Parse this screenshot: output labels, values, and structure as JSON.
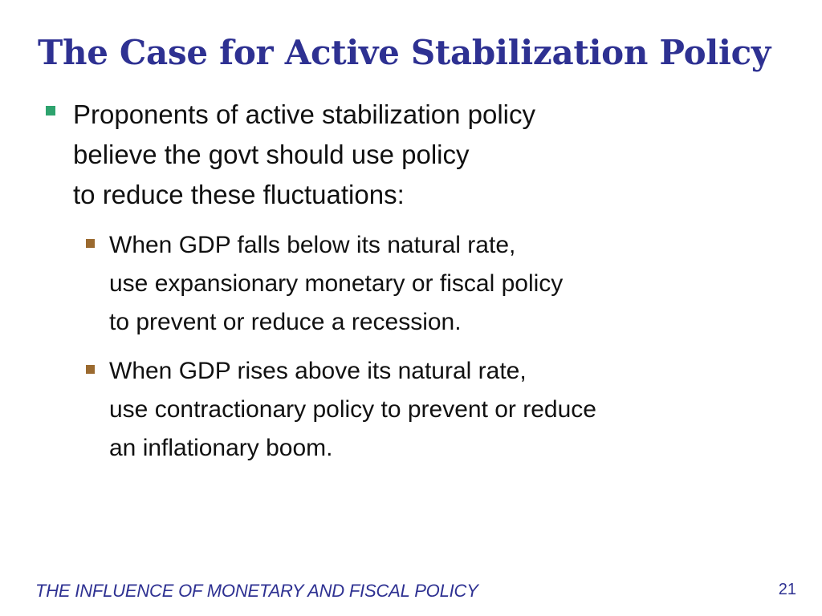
{
  "slide": {
    "title": "The Case for Active Stabilization Policy",
    "bullet_main": {
      "lines": [
        "Proponents of active stabilization policy",
        "believe the govt should use policy",
        "to reduce these fluctuations:"
      ],
      "sub_bullets": [
        {
          "lines": [
            "When GDP falls below its natural rate,",
            "use expansionary monetary or fiscal policy",
            "to prevent or reduce a recession."
          ]
        },
        {
          "lines": [
            "When GDP rises above its natural rate,",
            "use contractionary policy to prevent or reduce",
            "an inflationary boom."
          ]
        }
      ]
    },
    "footer_text": "THE INFLUENCE OF MONETARY AND FISCAL POLICY",
    "page_number": "21"
  },
  "colors": {
    "title": "#2e3192",
    "body_text": "#111111",
    "bullet_level1": "#2ea36e",
    "bullet_level2": "#9b6a2f",
    "footer": "#2e3192",
    "background": "#ffffff"
  },
  "icons": {
    "bullet_level1": "square-bullet-icon",
    "bullet_level2": "square-bullet-icon"
  }
}
